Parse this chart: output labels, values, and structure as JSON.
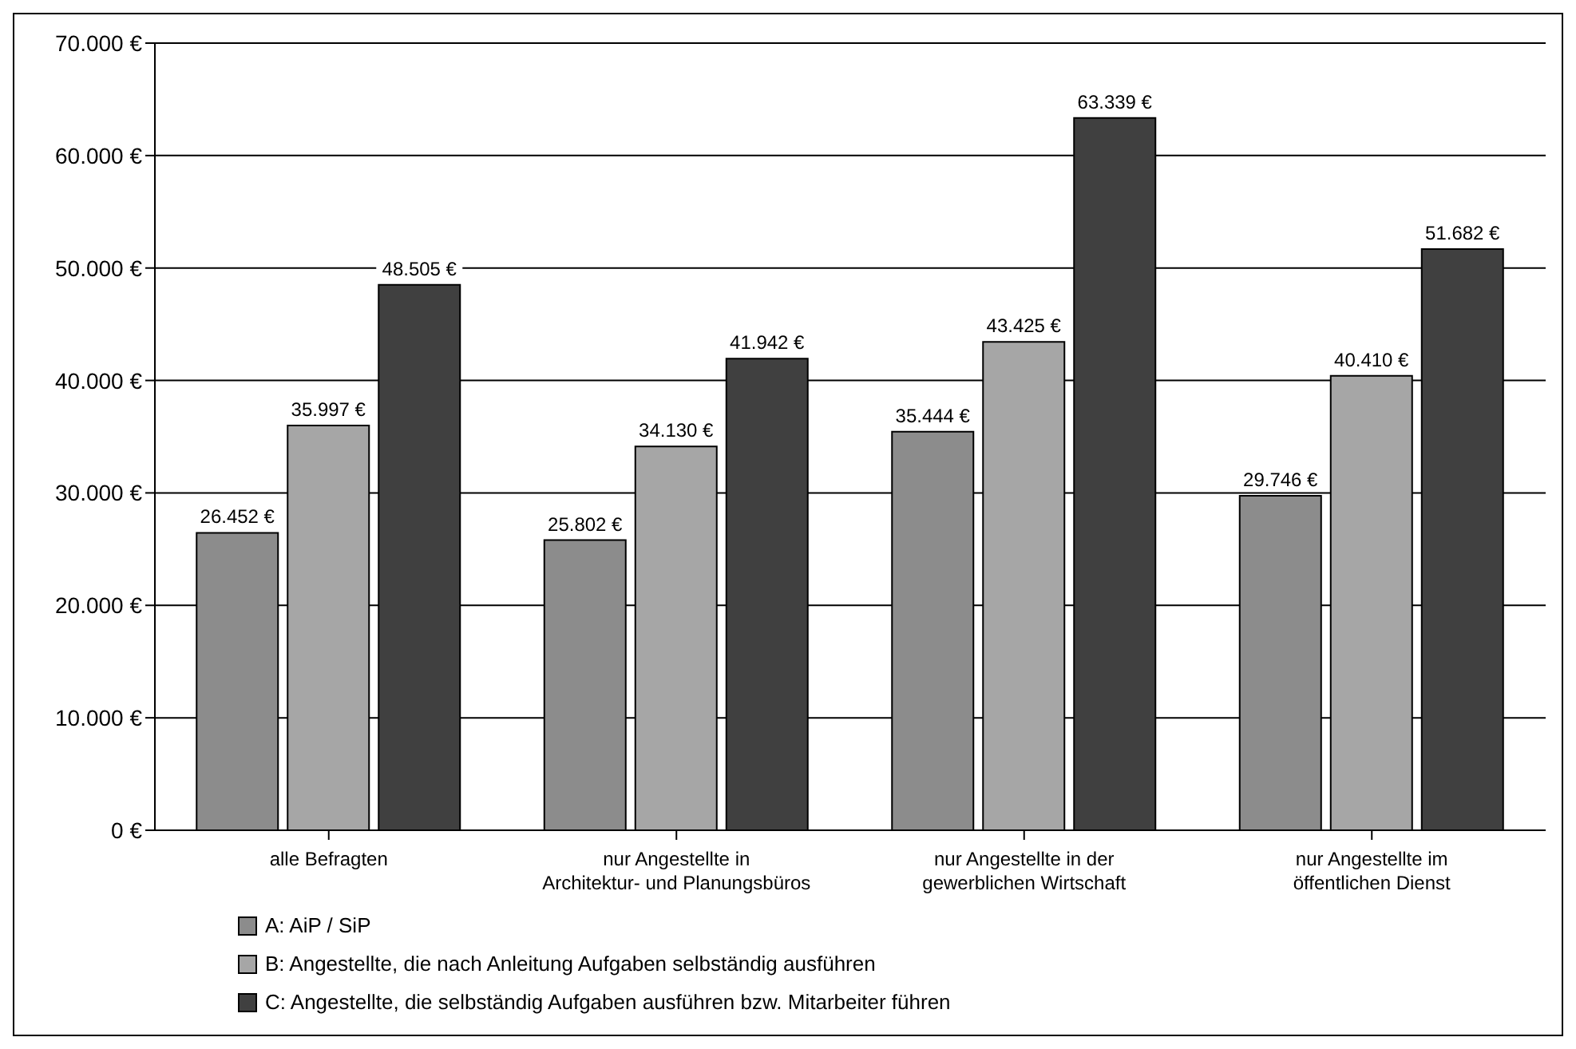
{
  "chart_data": {
    "type": "bar",
    "categories": [
      "alle Befragten",
      "nur Angestellte in Architektur- und Planungsbüros",
      "nur Angestellte in der gewerblichen Wirtschaft",
      "nur Angestellte im öffentlichen Dienst"
    ],
    "series": [
      {
        "name": "A: AiP / SiP",
        "color": "#8c8c8c",
        "values": [
          26452,
          25802,
          35444,
          29746
        ],
        "value_labels": [
          "26.452 €",
          "25.802 €",
          "35.444 €",
          "29.746 €"
        ]
      },
      {
        "name": "B: Angestellte, die nach Anleitung Aufgaben selbständig ausführen",
        "color": "#a6a6a6",
        "values": [
          35997,
          34130,
          43425,
          40410
        ],
        "value_labels": [
          "35.997 €",
          "34.130 €",
          "43.425 €",
          "40.410 €"
        ]
      },
      {
        "name": "C: Angestellte, die selbständig Aufgaben ausführen bzw. Mitarbeiter führen",
        "color": "#404040",
        "values": [
          48505,
          41942,
          63339,
          51682
        ],
        "value_labels": [
          "48.505 €",
          "41.942 €",
          "63.339 €",
          "51.682 €"
        ]
      }
    ],
    "ylim": [
      0,
      70000
    ],
    "yticks": [
      {
        "value": 0,
        "label": "0 €"
      },
      {
        "value": 10000,
        "label": "10.000 €"
      },
      {
        "value": 20000,
        "label": "20.000 €"
      },
      {
        "value": 30000,
        "label": "30.000 €"
      },
      {
        "value": 40000,
        "label": "40.000 €"
      },
      {
        "value": 50000,
        "label": "50.000 €"
      },
      {
        "value": 60000,
        "label": "60.000 €"
      },
      {
        "value": 70000,
        "label": "70.000 €"
      }
    ],
    "grid": "y",
    "legend": "bottom left"
  }
}
